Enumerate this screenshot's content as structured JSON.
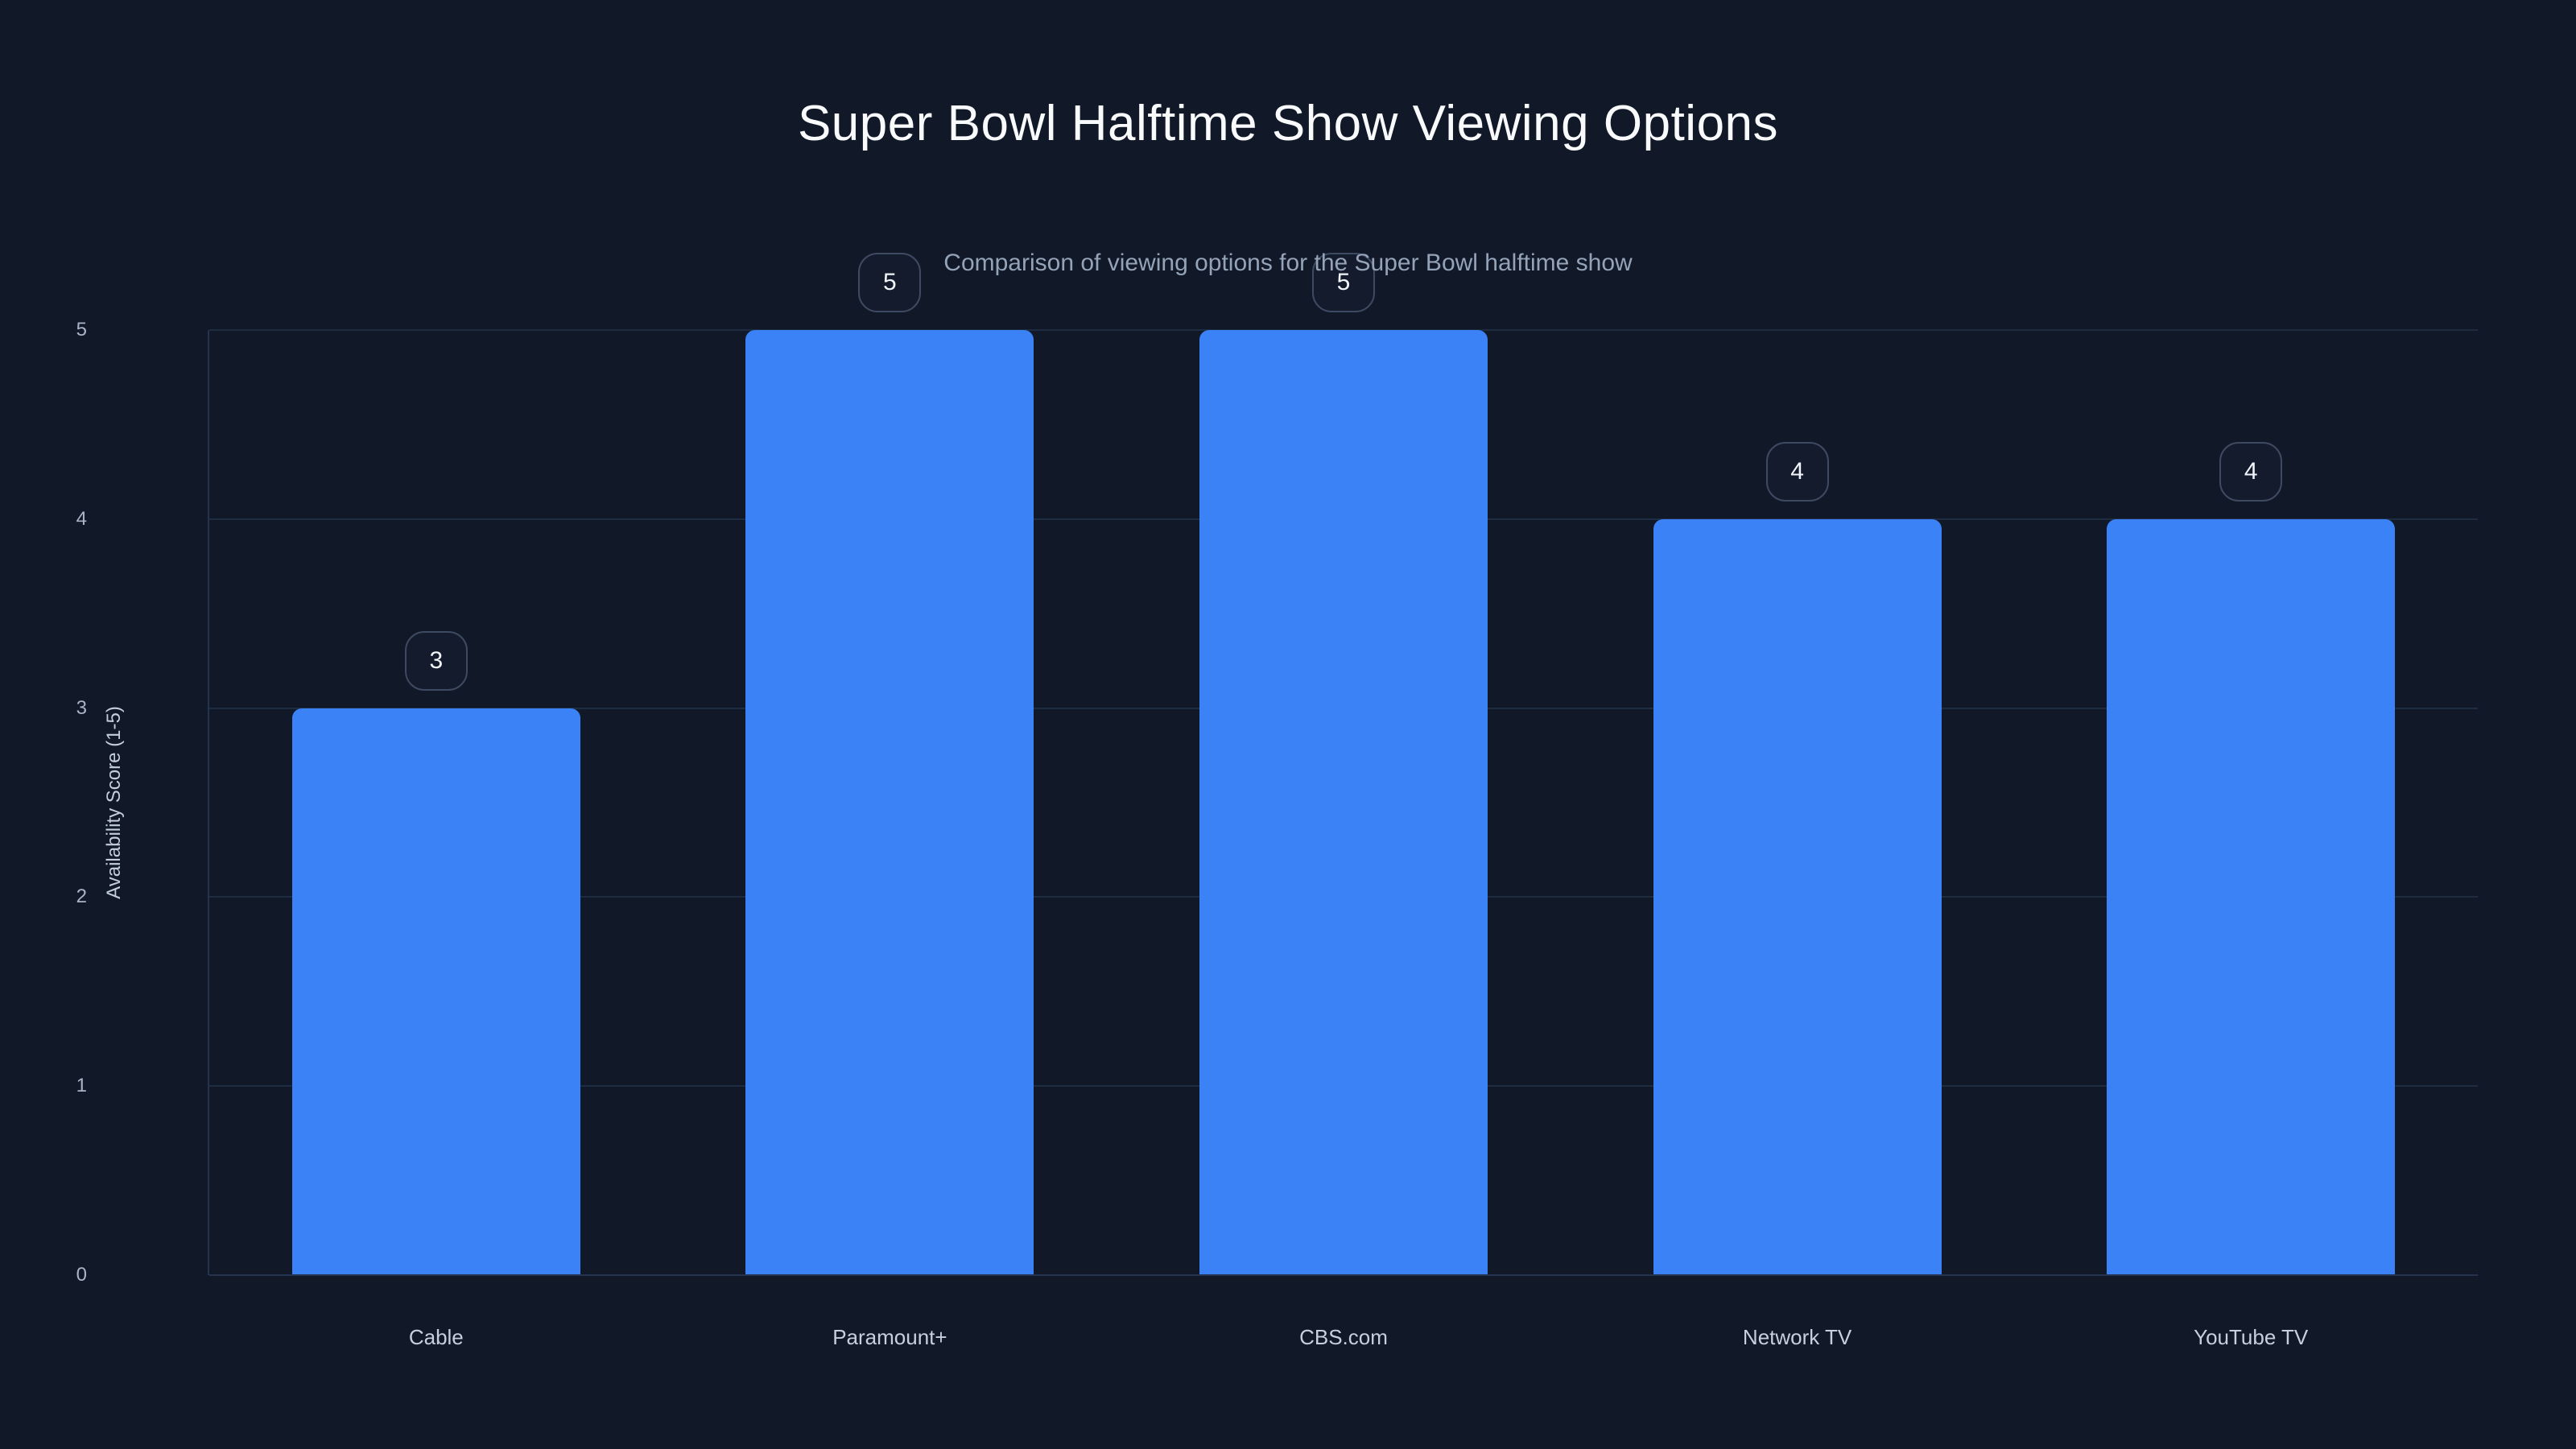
{
  "chart_data": {
    "type": "bar",
    "title": "Super Bowl Halftime Show Viewing Options",
    "subtitle": "Comparison of viewing options for the Super Bowl halftime show",
    "xlabel": "",
    "ylabel": "Availability Score (1-5)",
    "categories": [
      "Cable",
      "Paramount+",
      "CBS.com",
      "Network TV",
      "YouTube TV"
    ],
    "values": [
      3,
      5,
      5,
      4,
      4
    ],
    "value_labels": [
      "3",
      "5",
      "5",
      "4",
      "4"
    ],
    "ylim": [
      0,
      5
    ],
    "yticks": [
      0,
      1,
      2,
      3,
      4,
      5
    ],
    "grid": true,
    "legend": false,
    "bar_color": "#3b82f6",
    "background_color": "#111827",
    "title_color": "#f8fafc",
    "subtitle_color": "#94a3b8",
    "gridline_color": "#1e2c42",
    "axis_line_color": "#243350",
    "badge_border_color": "#3e4a61",
    "badge_text_color": "#f1f5f9"
  }
}
